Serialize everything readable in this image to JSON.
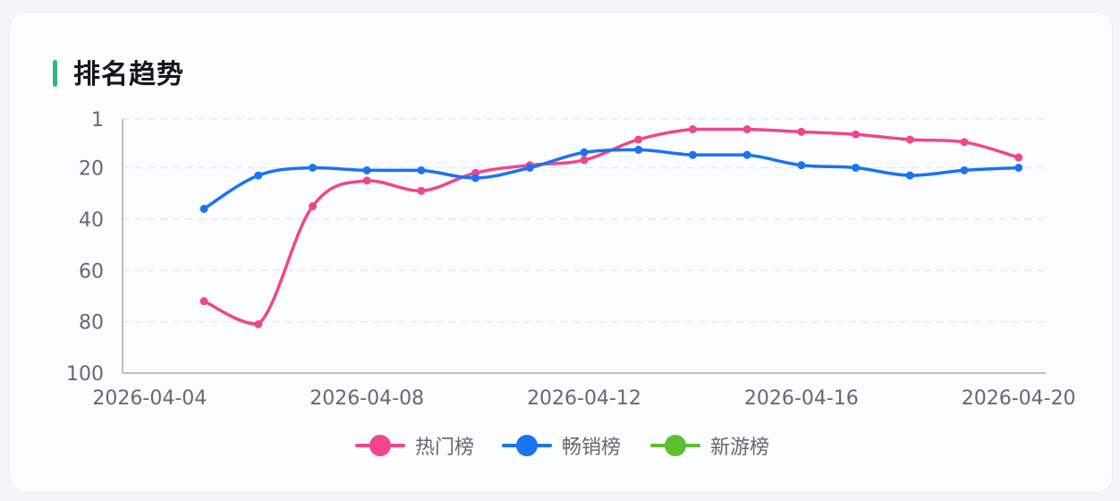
{
  "card": {
    "title": "排名趋势",
    "accent_color": "#2fb67c"
  },
  "legend": {
    "items": [
      {
        "label": "热门榜",
        "color": "#f0468c"
      },
      {
        "label": "畅销榜",
        "color": "#1a73f0"
      },
      {
        "label": "新游榜",
        "color": "#5cbf33"
      }
    ]
  },
  "chart_data": {
    "type": "line",
    "title": "排名趋势",
    "xlabel": "",
    "ylabel": "",
    "y_inverse": true,
    "ylim": [
      1,
      100
    ],
    "yticks": [
      1,
      20,
      40,
      60,
      80,
      100
    ],
    "categories": [
      "2026-04-04",
      "2026-04-05",
      "2026-04-06",
      "2026-04-07",
      "2026-04-08",
      "2026-04-09",
      "2026-04-10",
      "2026-04-11",
      "2026-04-12",
      "2026-04-13",
      "2026-04-14",
      "2026-04-15",
      "2026-04-16",
      "2026-04-17",
      "2026-04-18",
      "2026-04-19",
      "2026-04-20"
    ],
    "xtick_labels": [
      "2026-04-04",
      "2026-04-08",
      "2026-04-12",
      "2026-04-16",
      "2026-04-20"
    ],
    "series": [
      {
        "name": "热门榜",
        "color": "#f0468c",
        "values": [
          null,
          72,
          81,
          35,
          25,
          29,
          22,
          19,
          17,
          9,
          5,
          5,
          6,
          7,
          9,
          10,
          16
        ]
      },
      {
        "name": "畅销榜",
        "color": "#1a73f0",
        "values": [
          null,
          36,
          23,
          20,
          21,
          21,
          24,
          20,
          14,
          13,
          15,
          15,
          19,
          20,
          23,
          21,
          20
        ]
      },
      {
        "name": "新游榜",
        "color": "#5cbf33",
        "values": [
          null,
          null,
          null,
          null,
          null,
          null,
          null,
          null,
          null,
          null,
          null,
          null,
          null,
          null,
          null,
          null,
          null
        ]
      }
    ],
    "grid": true,
    "smooth": true,
    "legend_position": "bottom"
  }
}
